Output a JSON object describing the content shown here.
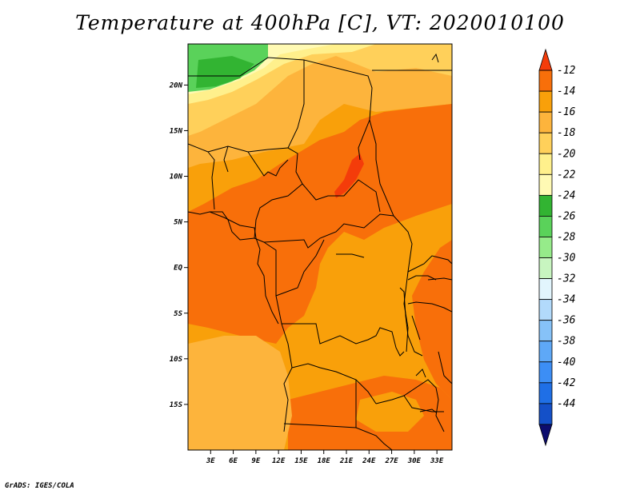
{
  "title": "Temperature at 400hPa [C], VT: 2020010100",
  "credit": "GrADS: IGES/COLA",
  "map": {
    "lon_range": [
      0,
      35
    ],
    "lat_range": [
      -20,
      24.5
    ],
    "lon_ticks": [
      {
        "value": 3,
        "label": "3E"
      },
      {
        "value": 6,
        "label": "6E"
      },
      {
        "value": 9,
        "label": "9E"
      },
      {
        "value": 12,
        "label": "12E"
      },
      {
        "value": 15,
        "label": "15E"
      },
      {
        "value": 18,
        "label": "18E"
      },
      {
        "value": 21,
        "label": "21E"
      },
      {
        "value": 24,
        "label": "24E"
      },
      {
        "value": 27,
        "label": "27E"
      },
      {
        "value": 30,
        "label": "30E"
      },
      {
        "value": 33,
        "label": "33E"
      }
    ],
    "lat_ticks": [
      {
        "value": 20,
        "label": "20N"
      },
      {
        "value": 15,
        "label": "15N"
      },
      {
        "value": 10,
        "label": "10N"
      },
      {
        "value": 5,
        "label": "5N"
      },
      {
        "value": 0,
        "label": "EQ"
      },
      {
        "value": -5,
        "label": "5S"
      },
      {
        "value": -10,
        "label": "10S"
      },
      {
        "value": -15,
        "label": "15S"
      }
    ]
  },
  "colorbar": {
    "colors": [
      "#0d0d6e",
      "#1450c8",
      "#1f6fe6",
      "#3c8ef5",
      "#5ea8f7",
      "#86c2f8",
      "#b2dafb",
      "#e2f5fd",
      "#c8f5c0",
      "#96eb8a",
      "#5ad25a",
      "#32b432",
      "#fffab4",
      "#fff08c",
      "#ffd05a",
      "#fdb43c",
      "#f9a00a",
      "#f86f0a",
      "#f43c0a"
    ],
    "labels": [
      "-12",
      "-14",
      "-16",
      "-18",
      "-20",
      "-22",
      "-24",
      "-26",
      "-28",
      "-30",
      "-32",
      "-34",
      "-36",
      "-38",
      "-40",
      "-42",
      "-44"
    ]
  },
  "field_colors": {
    "deep_orange": "#f86f0a",
    "orange": "#f9a00a",
    "light_orange": "#fdb43c",
    "pale_orange": "#ffd05a",
    "yellow": "#fff08c",
    "pale_yellow": "#fffab4",
    "green": "#32b432",
    "light_green": "#5ad25a",
    "red": "#f43c0a"
  }
}
